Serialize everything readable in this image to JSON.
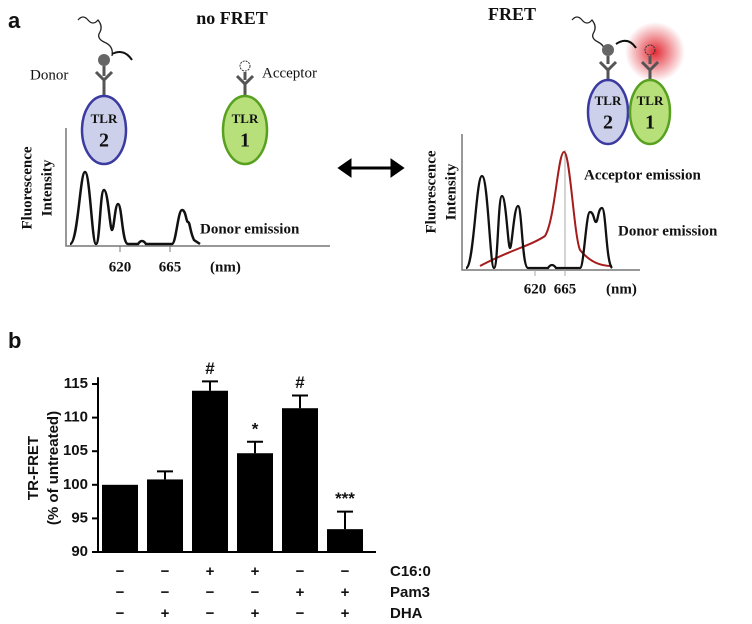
{
  "panel_a": {
    "label": "a",
    "left": {
      "title": "no FRET",
      "donor": "Donor",
      "acceptor": "Acceptor",
      "tlr2": [
        "TLR",
        "2"
      ],
      "tlr1": [
        "TLR",
        "1"
      ],
      "y_axis": [
        "Fluorescence",
        "Intensity"
      ],
      "emission": "Donor emission",
      "ticks": [
        "620",
        "665"
      ],
      "unit": "(nm)"
    },
    "right": {
      "title": "FRET",
      "tlr2": [
        "TLR",
        "2"
      ],
      "tlr1": [
        "TLR",
        "1"
      ],
      "y_axis": [
        "Fluorescence",
        "Intensity"
      ],
      "acceptor_emission": "Acceptor emission",
      "donor_emission": "Donor emission",
      "ticks": [
        "620",
        "665"
      ],
      "unit": "(nm)"
    }
  },
  "chart_data": {
    "type": "bar",
    "panel_label": "b",
    "ylabel": [
      "TR-FRET",
      "(% of untreated)"
    ],
    "values": [
      100,
      100.8,
      114,
      104.7,
      111.4,
      93.4
    ],
    "errors": [
      null,
      1.2,
      1.4,
      1.7,
      1.9,
      2.6
    ],
    "annotations": [
      null,
      null,
      "#",
      "*",
      "#",
      "***"
    ],
    "color": "#000000",
    "ylim": [
      90,
      116
    ],
    "yticks": [
      90,
      95,
      100,
      105,
      110,
      115
    ],
    "treatments": [
      {
        "name": "C16:0",
        "signs": [
          "−",
          "−",
          "+",
          "+",
          "−",
          "−"
        ]
      },
      {
        "name": "Pam3",
        "signs": [
          "−",
          "−",
          "−",
          "−",
          "+",
          "+"
        ]
      },
      {
        "name": "DHA",
        "signs": [
          "−",
          "+",
          "−",
          "+",
          "−",
          "+"
        ]
      }
    ]
  }
}
